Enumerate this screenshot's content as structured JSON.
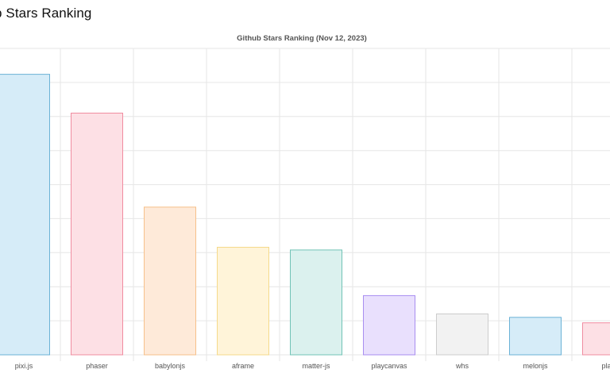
{
  "page": {
    "heading": "b Stars Ranking"
  },
  "colors": {
    "grid": "#e6e6e6",
    "bar_fills": [
      "#d6ecf8",
      "#fde0e5",
      "#feead9",
      "#fff4d9",
      "#dbf1ee",
      "#e9e0fd",
      "#f2f2f2",
      "#d6ecf8",
      "#fde0e5"
    ],
    "bar_strokes": [
      "#6bb2d6",
      "#f08ca0",
      "#f6c08a",
      "#f5d98a",
      "#71c3b6",
      "#a88ef0",
      "#cccccc",
      "#6bb2d6",
      "#f08ca0"
    ]
  },
  "chart_data": {
    "type": "bar",
    "title": "Github Stars Ranking (Nov 12, 2023)",
    "categories": [
      "pixi.js",
      "phaser",
      "babylonjs",
      "aframe",
      "matter-js",
      "playcanvas",
      "whs",
      "melonjs",
      "planck"
    ],
    "tick_labels": [
      "pixi.js",
      "phaser",
      "babylonjs",
      "aframe",
      "matter-js",
      "playcanvas",
      "whs",
      "melonjs",
      "plan"
    ],
    "values": [
      41.2,
      35.5,
      21.7,
      15.8,
      15.4,
      8.7,
      6.0,
      5.5,
      4.7
    ],
    "ylim": [
      0,
      45
    ],
    "grid": true,
    "legend": "none"
  }
}
